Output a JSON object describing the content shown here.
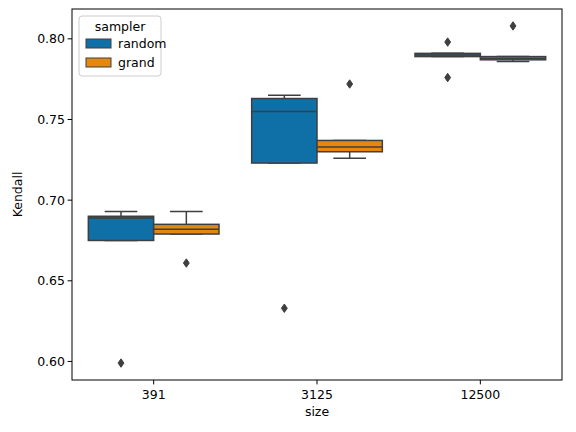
{
  "chart_data": {
    "type": "box",
    "x_label": "size",
    "y_label": "Kendall",
    "categories": [
      "391",
      "3125",
      "12500"
    ],
    "legend": "upper left",
    "legend_title": "sampler",
    "ylim": [
      0.5885,
      0.8185
    ],
    "yticks": [
      {
        "value": 0.6,
        "label": "0.60"
      },
      0.65,
      {
        "value": 0.7,
        "label": "0.70"
      },
      0.75,
      {
        "value": 0.8,
        "label": "0.80"
      }
    ],
    "grid": false,
    "series": [
      {
        "name": "random",
        "color": "#0f70a8",
        "boxes": [
          {
            "whislo": 0.675,
            "q1": 0.675,
            "med": 0.689,
            "q3": 0.69,
            "whishi": 0.693,
            "fliers": [
              0.599
            ]
          },
          {
            "whislo": 0.723,
            "q1": 0.723,
            "med": 0.755,
            "q3": 0.763,
            "whishi": 0.765,
            "fliers": [
              0.633
            ]
          },
          {
            "whislo": 0.789,
            "q1": 0.789,
            "med": 0.79,
            "q3": 0.791,
            "whishi": 0.791,
            "fliers": [
              0.798,
              0.776
            ]
          }
        ]
      },
      {
        "name": "grand",
        "color": "#e5880f",
        "boxes": [
          {
            "whislo": 0.679,
            "q1": 0.679,
            "med": 0.682,
            "q3": 0.685,
            "whishi": 0.693,
            "fliers": [
              0.661
            ]
          },
          {
            "whislo": 0.726,
            "q1": 0.73,
            "med": 0.733,
            "q3": 0.737,
            "whishi": 0.737,
            "fliers": [
              0.772
            ]
          },
          {
            "whislo": 0.786,
            "q1": 0.787,
            "med": 0.788,
            "q3": 0.789,
            "whishi": 0.789,
            "fliers": [
              0.808
            ]
          }
        ]
      }
    ]
  }
}
